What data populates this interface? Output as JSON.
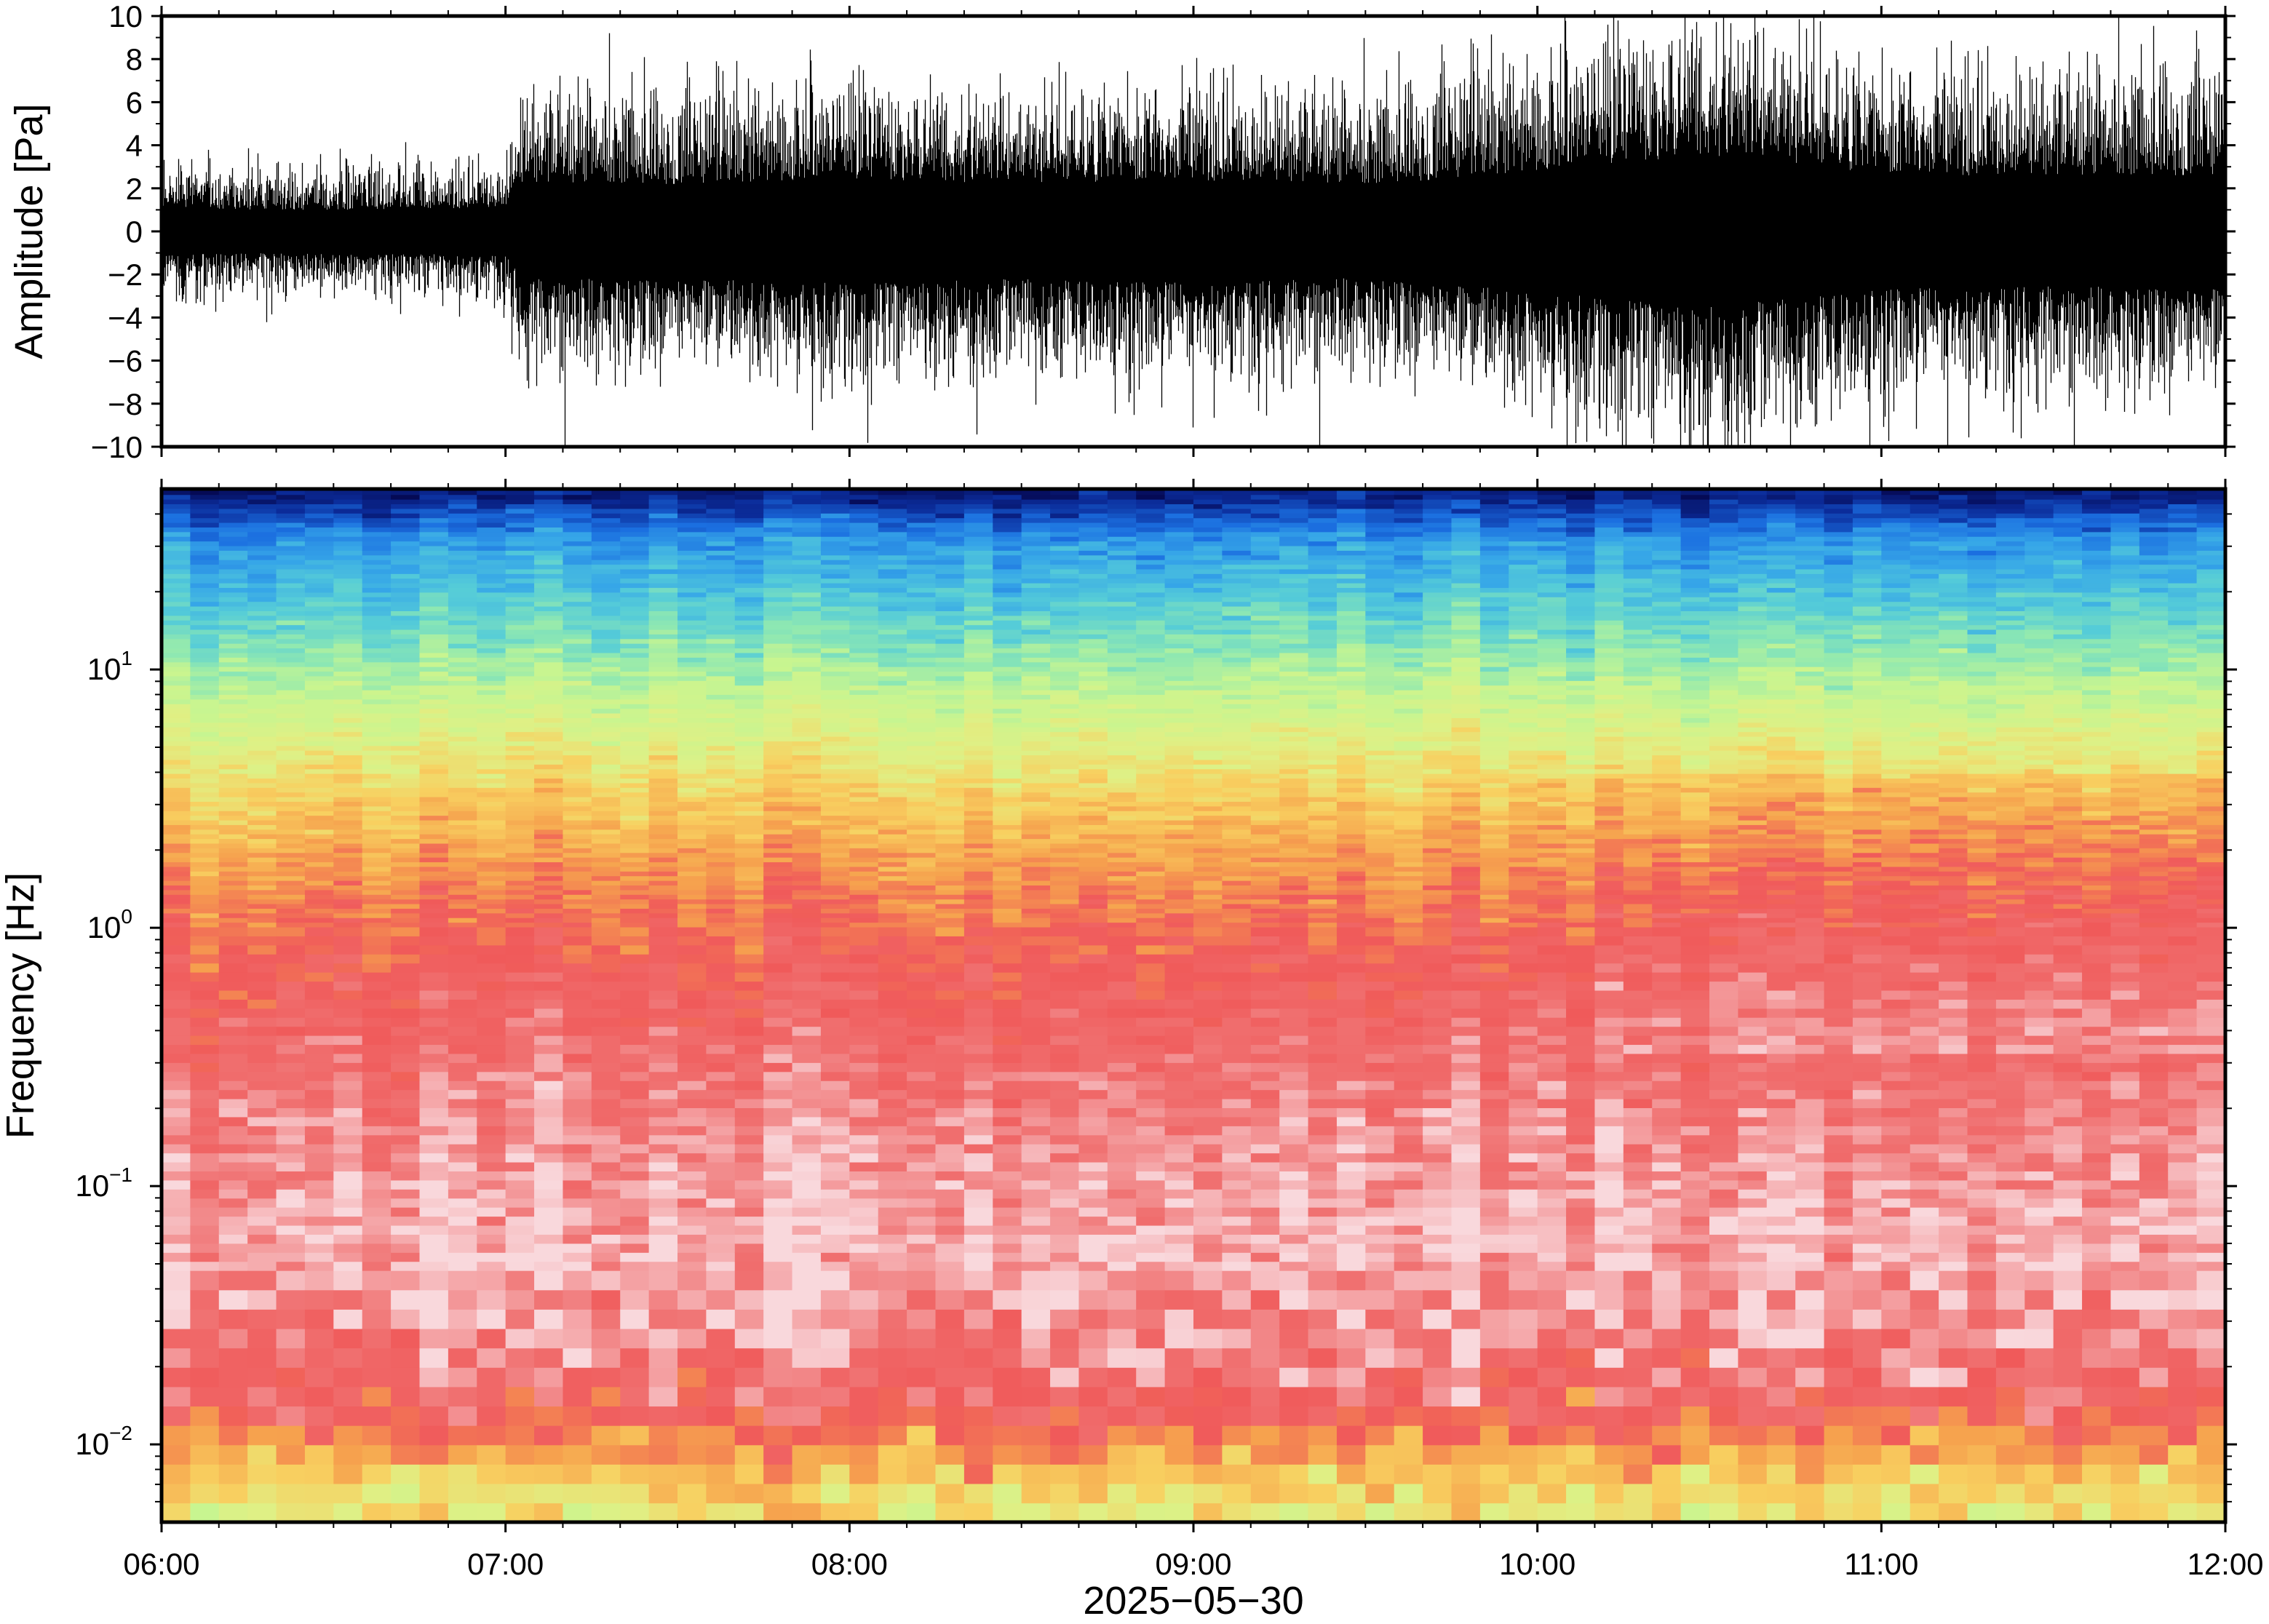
{
  "chart_data": [
    {
      "type": "line",
      "panel": "waveform",
      "ylabel": "Amplitude [Pa]",
      "ylim": [
        -10,
        10
      ],
      "yticks": [
        "10",
        "8",
        "6",
        "4",
        "2",
        "0",
        "−2",
        "−4",
        "−6",
        "−8",
        "−10"
      ],
      "ytick_values": [
        10,
        8,
        6,
        4,
        2,
        0,
        -2,
        -4,
        -6,
        -8,
        -10
      ],
      "xlim": [
        "06:00",
        "12:00"
      ],
      "series": [
        {
          "color": "#000000",
          "envelope_time_hours": [
            6.0,
            6.5,
            7.0,
            7.05,
            7.5,
            8.0,
            8.5,
            9.0,
            9.5,
            10.0,
            10.5,
            11.0,
            11.5,
            12.0
          ],
          "envelope_amplitude_pa": [
            1.9,
            1.8,
            2.0,
            4.0,
            4.0,
            4.4,
            4.0,
            4.3,
            3.9,
            5.1,
            6.4,
            4.8,
            4.6,
            4.8
          ]
        }
      ]
    },
    {
      "type": "heatmap",
      "panel": "spectrogram",
      "ylabel": "Frequency [Hz]",
      "yscale": "log",
      "ylim": [
        0.005,
        50
      ],
      "yticks": [
        {
          "value": 10,
          "base": "10",
          "exp": "1"
        },
        {
          "value": 1,
          "base": "10",
          "exp": "0"
        },
        {
          "value": 0.1,
          "base": "10",
          "exp": "−1"
        },
        {
          "value": 0.01,
          "base": "10",
          "exp": "−2"
        }
      ],
      "xlabel": "2025−05−30",
      "xticks": [
        "06:00",
        "07:00",
        "08:00",
        "09:00",
        "10:00",
        "11:00",
        "12:00"
      ],
      "xlim": [
        "06:00",
        "12:00"
      ],
      "colormap": [
        "#f9d8dc",
        "#f07070",
        "#f05a5a",
        "#f6a24e",
        "#f8d060",
        "#dff085",
        "#c8f590",
        "#8ee8b2",
        "#55ccd8",
        "#36a6e8",
        "#1b6fe0",
        "#0b2c9a",
        "#050a55"
      ],
      "profile_log10f": [
        -2.3,
        -2.15,
        -2.0,
        -1.85,
        -1.7,
        -1.5,
        -1.2,
        -0.9,
        -0.6,
        -0.3,
        0.0,
        0.25,
        0.5,
        0.7,
        0.9,
        1.1,
        1.3,
        1.5,
        1.68
      ],
      "profile_level": [
        5.0,
        4.0,
        3.0,
        1.6,
        1.2,
        0.6,
        0.4,
        0.7,
        1.1,
        1.6,
        2.3,
        3.0,
        4.0,
        5.0,
        6.0,
        7.2,
        8.3,
        9.3,
        11.5
      ],
      "grid": false
    }
  ]
}
